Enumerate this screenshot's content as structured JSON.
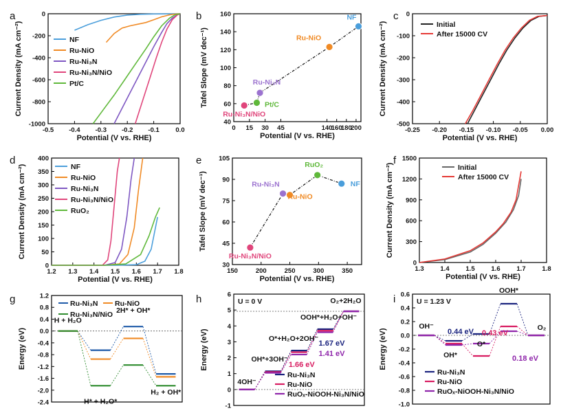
{
  "chart_data": [
    {
      "id": "a",
      "type": "line",
      "panel_label": "a",
      "xlabel": "Potential (V vs. RHE)",
      "ylabel": "Current Density (mA cm⁻²)",
      "xlim": [
        -0.5,
        0.0
      ],
      "ylim": [
        -1000,
        0
      ],
      "xticks": [
        "-0.5",
        "-0.4",
        "-0.3",
        "-0.2",
        "-0.1",
        "0.0"
      ],
      "yticks": [
        "-1000",
        "-800",
        "-600",
        "-400",
        "-200",
        "0"
      ],
      "legend": "top-left",
      "series": [
        {
          "name": "NF",
          "color": "#4a9edb",
          "x": [
            -0.4,
            -0.35,
            -0.3,
            -0.25,
            -0.2,
            -0.15,
            -0.1,
            -0.05,
            0.0
          ],
          "y": [
            -150,
            -100,
            -60,
            -30,
            -12,
            -5,
            -2,
            -1,
            0
          ]
        },
        {
          "name": "Ru-NiO",
          "color": "#f08a24",
          "x": [
            -0.28,
            -0.25,
            -0.22,
            -0.19,
            -0.16,
            -0.13,
            -0.1,
            -0.07,
            -0.04,
            -0.02,
            0.0
          ],
          "y": [
            -260,
            -180,
            -130,
            -110,
            -95,
            -80,
            -55,
            -28,
            -10,
            -3,
            0
          ]
        },
        {
          "name": "Ru-Ni₃N",
          "color": "#7e57c2",
          "x": [
            -0.25,
            -0.22,
            -0.19,
            -0.16,
            -0.13,
            -0.1,
            -0.07,
            -0.05,
            -0.03,
            -0.01,
            0.0
          ],
          "y": [
            -1000,
            -860,
            -720,
            -580,
            -440,
            -300,
            -170,
            -90,
            -40,
            -8,
            0
          ]
        },
        {
          "name": "Ru-Ni₃N/NiO",
          "color": "#e0457b",
          "x": [
            -0.17,
            -0.15,
            -0.13,
            -0.11,
            -0.09,
            -0.07,
            -0.05,
            -0.03,
            -0.01,
            0.0
          ],
          "y": [
            -1000,
            -850,
            -700,
            -550,
            -400,
            -260,
            -140,
            -55,
            -10,
            0
          ]
        },
        {
          "name": "Pt/C",
          "color": "#5fb83a",
          "x": [
            -0.33,
            -0.29,
            -0.25,
            -0.21,
            -0.17,
            -0.13,
            -0.1,
            -0.07,
            -0.04,
            -0.02,
            0.0
          ],
          "y": [
            -1000,
            -870,
            -740,
            -600,
            -460,
            -320,
            -210,
            -110,
            -40,
            -10,
            0
          ]
        }
      ]
    },
    {
      "id": "b",
      "type": "scatter",
      "panel_label": "b",
      "xlabel": "Potential (V vs. RHE)",
      "ylabel": "Tafel Slope (mV dec⁻¹)",
      "xlim": [
        0,
        210
      ],
      "ylim": [
        40,
        160
      ],
      "xticks": [
        "0",
        "15",
        "30",
        "45",
        "140",
        "160",
        "180",
        "200"
      ],
      "yticks": [
        "40",
        "60",
        "80",
        "100",
        "120",
        "140",
        "160"
      ],
      "points": [
        {
          "name": "Ru-Ni₃N/NiO",
          "x": 10,
          "y": 58,
          "color": "#e0457b"
        },
        {
          "name": "Pt/C",
          "x": 22,
          "y": 61,
          "color": "#5fb83a"
        },
        {
          "name": "Ru-Ni₃N",
          "x": 25,
          "y": 72,
          "color": "#9b72cf"
        },
        {
          "name": "Ru-NiO",
          "x": 145,
          "y": 123,
          "color": "#f08a24"
        },
        {
          "name": "NF",
          "x": 205,
          "y": 146,
          "color": "#4a9edb"
        }
      ]
    },
    {
      "id": "c",
      "type": "line",
      "panel_label": "c",
      "xlabel": "Potential (V vs. RHE)",
      "ylabel": "Current Density (mA cm⁻²)",
      "xlim": [
        -0.25,
        0.0
      ],
      "ylim": [
        -500,
        0
      ],
      "xticks": [
        "-0.25",
        "-0.20",
        "-0.15",
        "-0.10",
        "-0.05",
        "0.00"
      ],
      "yticks": [
        "-500",
        "-400",
        "-300",
        "-200",
        "-100",
        "0"
      ],
      "legend": "top-left",
      "series": [
        {
          "name": "Initial",
          "color": "#222222",
          "x": [
            -0.148,
            -0.135,
            -0.12,
            -0.105,
            -0.09,
            -0.075,
            -0.06,
            -0.045,
            -0.03,
            -0.015,
            0.0
          ],
          "y": [
            -500,
            -440,
            -370,
            -300,
            -230,
            -165,
            -110,
            -65,
            -30,
            -12,
            -8
          ]
        },
        {
          "name": "After 15000 CV",
          "color": "#e53935",
          "x": [
            -0.152,
            -0.138,
            -0.123,
            -0.108,
            -0.093,
            -0.078,
            -0.063,
            -0.048,
            -0.033,
            -0.018,
            0.0
          ],
          "y": [
            -500,
            -440,
            -370,
            -300,
            -230,
            -165,
            -110,
            -65,
            -30,
            -12,
            -8
          ]
        }
      ]
    },
    {
      "id": "d",
      "type": "line",
      "panel_label": "d",
      "xlabel": "Potential (V vs. RHE)",
      "ylabel": "Current Density (mA cm⁻²)",
      "xlim": [
        1.2,
        1.8
      ],
      "ylim": [
        0,
        400
      ],
      "xticks": [
        "1.2",
        "1.3",
        "1.4",
        "1.5",
        "1.6",
        "1.7",
        "1.8"
      ],
      "yticks": [
        "0",
        "50",
        "100",
        "150",
        "200",
        "250",
        "300",
        "350",
        "400"
      ],
      "legend": "top-left",
      "series": [
        {
          "name": "NF",
          "color": "#4a9edb",
          "x": [
            1.2,
            1.5,
            1.6,
            1.64,
            1.67,
            1.69,
            1.7
          ],
          "y": [
            0,
            0,
            2,
            15,
            60,
            140,
            180
          ]
        },
        {
          "name": "Ru-NiO",
          "color": "#f08a24",
          "x": [
            1.2,
            1.45,
            1.52,
            1.56,
            1.59,
            1.61,
            1.63
          ],
          "y": [
            0,
            0,
            5,
            40,
            140,
            280,
            400
          ]
        },
        {
          "name": "Ru-Ni₃N",
          "color": "#7e57c2",
          "x": [
            1.2,
            1.45,
            1.5,
            1.53,
            1.555,
            1.575,
            1.59
          ],
          "y": [
            0,
            0,
            10,
            60,
            180,
            320,
            400
          ]
        },
        {
          "name": "Ru-Ni₃N/NiO",
          "color": "#e0457b",
          "x": [
            1.2,
            1.44,
            1.465,
            1.48,
            1.495,
            1.51,
            1.52
          ],
          "y": [
            0,
            0,
            20,
            90,
            220,
            350,
            400
          ]
        },
        {
          "name": "RuO₂",
          "color": "#5fb83a",
          "x": [
            1.2,
            1.45,
            1.55,
            1.62,
            1.66,
            1.69,
            1.71
          ],
          "y": [
            0,
            0,
            5,
            40,
            110,
            180,
            215
          ]
        }
      ]
    },
    {
      "id": "e",
      "type": "scatter",
      "panel_label": "e",
      "xlabel": "Potential (V vs. RHE)",
      "ylabel": "Tafel Slope (mV dec⁻¹)",
      "xlim": [
        150,
        375
      ],
      "ylim": [
        30,
        105
      ],
      "xticks": [
        "150",
        "200",
        "250",
        "300",
        "350"
      ],
      "yticks": [
        "30",
        "45",
        "60",
        "75",
        "90",
        "105"
      ],
      "points": [
        {
          "name": "Ru-Ni₃N/NiO",
          "x": 181,
          "y": 42,
          "color": "#e0457b"
        },
        {
          "name": "Ru-Ni₃N",
          "x": 238,
          "y": 80,
          "color": "#9b72cf"
        },
        {
          "name": "Ru-NiO",
          "x": 250,
          "y": 79,
          "color": "#f08a24"
        },
        {
          "name": "RuO₂",
          "x": 298,
          "y": 93,
          "color": "#5fb83a"
        },
        {
          "name": "NF",
          "x": 340,
          "y": 87,
          "color": "#4a9edb"
        }
      ]
    },
    {
      "id": "f",
      "type": "line",
      "panel_label": "f",
      "xlabel": "Potential (V vs. RHE)",
      "ylabel": "Current Density (mA cm⁻²)",
      "xlim": [
        1.3,
        1.8
      ],
      "ylim": [
        0,
        1500
      ],
      "xticks": [
        "1.3",
        "1.4",
        "1.5",
        "1.6",
        "1.7",
        "1.8"
      ],
      "yticks": [
        "0",
        "300",
        "600",
        "900",
        "1200",
        "1500"
      ],
      "legend": "top-right",
      "series": [
        {
          "name": "Initial",
          "color": "#666666",
          "x": [
            1.3,
            1.4,
            1.5,
            1.55,
            1.6,
            1.64,
            1.67,
            1.69,
            1.7
          ],
          "y": [
            0,
            40,
            150,
            260,
            420,
            580,
            760,
            960,
            1200
          ]
        },
        {
          "name": "After 15000 CV",
          "color": "#e53935",
          "x": [
            1.3,
            1.4,
            1.5,
            1.55,
            1.6,
            1.63,
            1.66,
            1.68,
            1.7
          ],
          "y": [
            0,
            50,
            170,
            280,
            440,
            560,
            720,
            900,
            1310
          ]
        }
      ]
    },
    {
      "id": "g",
      "type": "line",
      "panel_label": "g",
      "xlabel": "",
      "ylabel": "Energy (eV)",
      "ylim": [
        -2.4,
        1.2
      ],
      "yticks": [
        "-2.4",
        "-2.0",
        "-1.6",
        "-1.2",
        "-0.8",
        "-0.4",
        "0.0",
        "0.4",
        "0.8",
        "1.2"
      ],
      "legend": "top-left",
      "states": [
        "H + H₂O",
        "H* + H₂O*",
        "2H* + OH*",
        "H₂ + OH*"
      ],
      "series": [
        {
          "name": "Ru-Ni₃N",
          "color": "#1e5aa8",
          "values": [
            0,
            -0.65,
            0.15,
            -1.45
          ]
        },
        {
          "name": "Ru-NiO",
          "color": "#f08a24",
          "values": [
            0,
            -0.95,
            -0.25,
            -1.55
          ]
        },
        {
          "name": "Ru-Ni₃N/NiO",
          "color": "#2e8b2e",
          "values": [
            0,
            -1.85,
            -1.15,
            -1.85
          ]
        }
      ]
    },
    {
      "id": "h",
      "type": "line",
      "panel_label": "h",
      "xlabel": "",
      "ylabel": "Energy (eV)",
      "ylim": [
        -1,
        6
      ],
      "yticks": [
        "-1",
        "0",
        "1",
        "2",
        "3",
        "4",
        "5",
        "6"
      ],
      "condition": "U = 0 V",
      "states": [
        "4OH⁻",
        "OH*+3OH⁻",
        "O*+H₂O+2OH⁻",
        "OOH*+H₂O+OH⁻",
        "O₂+2H₂O"
      ],
      "annotations": [
        "1.67 eV",
        "1.41 eV",
        "1.66 eV"
      ],
      "legend": "bottom",
      "series": [
        {
          "name": "Ru-Ni₃N",
          "color": "#1a237e",
          "values": [
            0,
            1.15,
            2.45,
            3.8,
            4.92
          ]
        },
        {
          "name": "Ru-NiO",
          "color": "#d81b60",
          "values": [
            0,
            1.1,
            2.35,
            3.7,
            4.92
          ]
        },
        {
          "name": "RuOₓ-NiOOH-Ni₃N/NiO",
          "color": "#8e24aa",
          "values": [
            0,
            1.05,
            2.2,
            3.6,
            4.92
          ]
        }
      ]
    },
    {
      "id": "i",
      "type": "line",
      "panel_label": "i",
      "xlabel": "",
      "ylabel": "Energy (eV)",
      "ylim": [
        -1.0,
        0.6
      ],
      "yticks": [
        "-1.0",
        "-0.8",
        "-0.6",
        "-0.4",
        "-0.2",
        "0.0",
        "0.2",
        "0.4",
        "0.6"
      ],
      "condition": "U = 1.23 V",
      "states": [
        "OH⁻",
        "OH*",
        "O*",
        "OOH*",
        "O₂"
      ],
      "annotations": [
        "0.44 eV",
        "0.43 eV",
        "0.18 eV"
      ],
      "legend": "bottom",
      "series": [
        {
          "name": "Ru-Ni₃N",
          "color": "#1a237e",
          "values": [
            0,
            -0.08,
            0.02,
            0.46,
            0
          ]
        },
        {
          "name": "Ru-NiO",
          "color": "#d81b60",
          "values": [
            0,
            -0.12,
            -0.3,
            0.13,
            0
          ]
        },
        {
          "name": "RuOₓ-NiOOH-Ni₃N/NiO",
          "color": "#8e24aa",
          "values": [
            0,
            -0.14,
            -0.12,
            0.06,
            0
          ]
        }
      ]
    }
  ]
}
